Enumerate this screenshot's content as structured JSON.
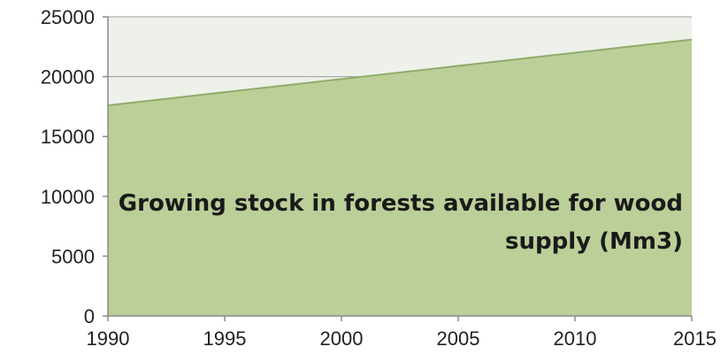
{
  "chart_data": {
    "type": "area",
    "title": "",
    "xlabel": "",
    "ylabel": "",
    "x": [
      1990,
      2015
    ],
    "series": [
      {
        "values": [
          17600,
          23100
        ]
      }
    ],
    "xlim": [
      1990,
      2015
    ],
    "ylim": [
      0,
      25000
    ],
    "x_ticks": [
      "1990",
      "1995",
      "2000",
      "2005",
      "2010",
      "2015"
    ],
    "y_ticks": [
      "0",
      "5000",
      "10000",
      "15000",
      "20000",
      "25000"
    ],
    "grid": true,
    "annotation_lines": [
      "Growing stock in forests available for wood",
      "supply (Mm3)"
    ],
    "colors": {
      "area_fill": "#bccf98",
      "area_edge": "#8fac6a",
      "plot_background": "#eef1ea",
      "gridline": "#9c9c9c",
      "axis": "#8a8a8a"
    }
  }
}
